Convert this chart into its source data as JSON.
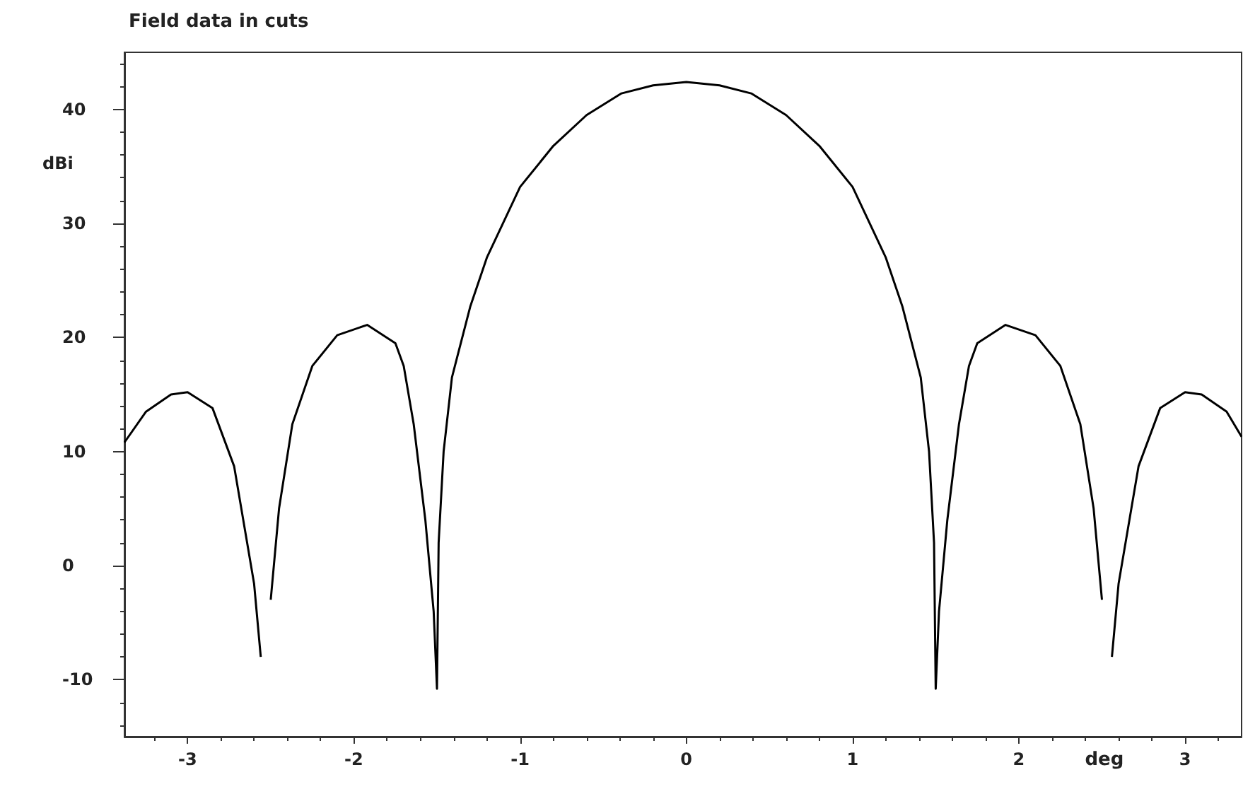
{
  "chart_data": {
    "type": "line",
    "title": "Field data in cuts",
    "xlabel": "deg",
    "ylabel": "dBi",
    "xlim": [
      -3.38,
      3.34
    ],
    "ylim": [
      -15,
      45
    ],
    "xticks": [
      -3,
      -2,
      -1,
      0,
      1,
      2,
      3
    ],
    "yticks": [
      -10,
      0,
      10,
      20,
      30,
      40
    ],
    "grid": false,
    "marker": "none",
    "line_style": "solid",
    "series": [
      {
        "color": "#000000",
        "x": [
          -3.38,
          -3.25,
          -3.1,
          -3.0,
          -2.85,
          -2.72,
          -2.6,
          -2.56,
          -2.54,
          -2.5,
          -2.45,
          -2.37,
          -2.25,
          -2.1,
          -1.92,
          -1.75,
          -1.7,
          -1.64,
          -1.57,
          -1.52,
          -1.5,
          -1.49,
          -1.46,
          -1.41,
          -1.3,
          -1.2,
          -1.0,
          -0.8,
          -0.6,
          -0.39,
          -0.2,
          0,
          0.2,
          0.39,
          0.6,
          0.8,
          1.0,
          1.2,
          1.3,
          1.41,
          1.46,
          1.49,
          1.5,
          1.52,
          1.57,
          1.64,
          1.7,
          1.75,
          1.92,
          2.1,
          2.25,
          2.37,
          2.45,
          2.5,
          2.54,
          2.56,
          2.6,
          2.72,
          2.85,
          3.0,
          3.1,
          3.25,
          3.34
        ],
        "values": [
          10.8,
          13.5,
          15,
          15.2,
          13.8,
          8.7,
          -1.6,
          -8,
          null,
          -3,
          5,
          12.4,
          17.5,
          20.2,
          21.1,
          19.5,
          17.5,
          12.4,
          4,
          -4,
          -10.8,
          2,
          10,
          16.5,
          22.7,
          27,
          33.2,
          36.8,
          39.5,
          41.4,
          42.1,
          42.4,
          42.1,
          41.4,
          39.5,
          36.8,
          33.2,
          27,
          22.7,
          16.5,
          10,
          2,
          -10.8,
          -4,
          4,
          12.4,
          17.5,
          19.5,
          21.1,
          20.2,
          17.5,
          12.4,
          5,
          -3,
          null,
          -8,
          -1.6,
          8.7,
          13.8,
          15.2,
          15,
          13.5,
          11.3
        ]
      }
    ]
  }
}
